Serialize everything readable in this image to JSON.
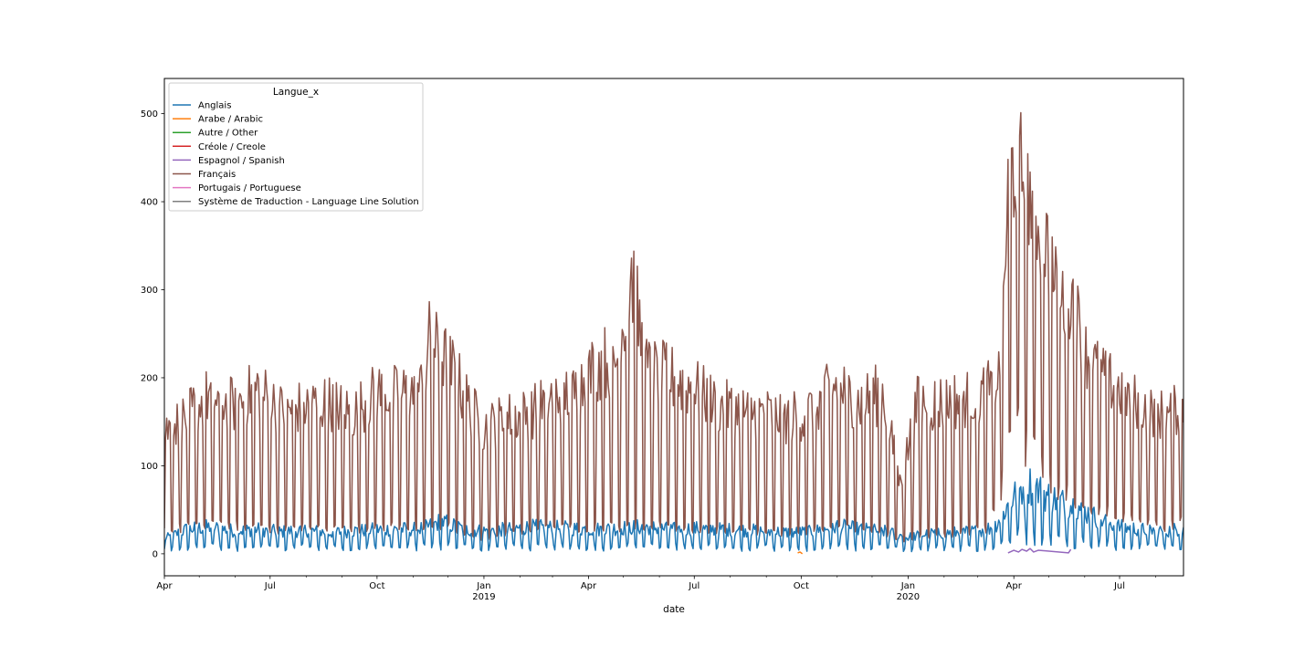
{
  "chart_data": {
    "type": "line",
    "title": "",
    "xlabel": "date",
    "ylabel": "",
    "ylim": [
      -25,
      540
    ],
    "xlim": [
      "2018-04-01",
      "2020-08-25"
    ],
    "grid": false,
    "legend": {
      "title": "Langue_x",
      "placement": "top-left"
    },
    "y_ticks": [
      0,
      100,
      200,
      300,
      400,
      500
    ],
    "x_ticks": [
      {
        "date": "2018-04-01",
        "label": "Apr",
        "year": ""
      },
      {
        "date": "2018-07-01",
        "label": "Jul",
        "year": ""
      },
      {
        "date": "2018-10-01",
        "label": "Oct",
        "year": ""
      },
      {
        "date": "2019-01-01",
        "label": "Jan",
        "year": "2019"
      },
      {
        "date": "2019-04-01",
        "label": "Apr",
        "year": ""
      },
      {
        "date": "2019-07-01",
        "label": "Jul",
        "year": ""
      },
      {
        "date": "2019-10-01",
        "label": "Oct",
        "year": ""
      },
      {
        "date": "2020-01-01",
        "label": "Jan",
        "year": "2020"
      },
      {
        "date": "2020-04-01",
        "label": "Apr",
        "year": ""
      },
      {
        "date": "2020-07-01",
        "label": "Jul",
        "year": ""
      }
    ],
    "x_minor_ticks": [
      "2018-05-01",
      "2018-06-01",
      "2018-08-01",
      "2018-09-01",
      "2018-11-01",
      "2018-12-01",
      "2019-02-01",
      "2019-03-01",
      "2019-05-01",
      "2019-06-01",
      "2019-08-01",
      "2019-09-01",
      "2019-11-01",
      "2019-12-01",
      "2020-02-01",
      "2020-03-01",
      "2020-05-01",
      "2020-06-01",
      "2020-08-01"
    ],
    "series": [
      {
        "name": "Anglais",
        "color": "#1f77b4",
        "x": [
          "2018-04-01",
          "2018-04-20",
          "2018-05-10",
          "2018-06-01",
          "2018-06-20",
          "2018-07-10",
          "2018-08-01",
          "2018-08-20",
          "2018-09-10",
          "2018-10-01",
          "2018-10-20",
          "2018-11-10",
          "2018-11-25",
          "2018-12-15",
          "2019-01-01",
          "2019-01-20",
          "2019-02-10",
          "2019-03-01",
          "2019-03-20",
          "2019-04-10",
          "2019-05-01",
          "2019-05-20",
          "2019-06-10",
          "2019-07-01",
          "2019-07-20",
          "2019-08-10",
          "2019-09-01",
          "2019-09-20",
          "2019-10-10",
          "2019-11-01",
          "2019-11-20",
          "2019-12-10",
          "2020-01-01",
          "2020-01-20",
          "2020-02-10",
          "2020-03-01",
          "2020-03-15",
          "2020-03-25",
          "2020-04-05",
          "2020-04-15",
          "2020-04-25",
          "2020-05-05",
          "2020-05-15",
          "2020-05-25",
          "2020-06-10",
          "2020-07-01",
          "2020-07-20",
          "2020-08-10",
          "2020-08-25"
        ],
        "values": [
          18,
          30,
          33,
          28,
          30,
          27,
          29,
          26,
          28,
          30,
          30,
          31,
          40,
          30,
          28,
          30,
          33,
          32,
          31,
          30,
          32,
          33,
          30,
          31,
          30,
          29,
          28,
          26,
          27,
          34,
          30,
          28,
          20,
          25,
          26,
          28,
          33,
          55,
          78,
          85,
          75,
          68,
          62,
          58,
          45,
          33,
          30,
          28,
          32
        ]
      },
      {
        "name": "Arabe / Arabic",
        "color": "#ff7f0e",
        "x": [
          "2019-09-28",
          "2019-09-30",
          "2019-10-02"
        ],
        "values": [
          1,
          2,
          0
        ]
      },
      {
        "name": "Autre / Other",
        "color": "#2ca02c",
        "x": [],
        "values": []
      },
      {
        "name": "Créole / Creole",
        "color": "#d62728",
        "x": [],
        "values": []
      },
      {
        "name": "Espagnol / Spanish",
        "color": "#9467bd",
        "x": [
          "2020-03-27",
          "2020-04-01",
          "2020-04-05",
          "2020-04-08",
          "2020-04-12",
          "2020-04-15",
          "2020-04-18",
          "2020-04-22",
          "2020-05-18",
          "2020-05-20"
        ],
        "values": [
          1,
          4,
          2,
          5,
          3,
          6,
          2,
          4,
          1,
          5
        ]
      },
      {
        "name": "Français",
        "color": "#8c564b",
        "x": [
          "2018-04-01",
          "2018-04-20",
          "2018-05-10",
          "2018-06-01",
          "2018-06-20",
          "2018-07-10",
          "2018-08-01",
          "2018-08-20",
          "2018-09-10",
          "2018-10-01",
          "2018-10-20",
          "2018-11-10",
          "2018-11-15",
          "2018-12-05",
          "2018-12-20",
          "2019-01-01",
          "2019-01-20",
          "2019-02-10",
          "2019-03-01",
          "2019-03-20",
          "2019-04-10",
          "2019-04-25",
          "2019-05-08",
          "2019-05-20",
          "2019-06-10",
          "2019-07-01",
          "2019-07-20",
          "2019-08-10",
          "2019-09-01",
          "2019-09-20",
          "2019-10-10",
          "2019-11-01",
          "2019-11-20",
          "2019-12-10",
          "2019-12-25",
          "2020-01-10",
          "2020-02-01",
          "2020-02-20",
          "2020-03-10",
          "2020-03-20",
          "2020-03-28",
          "2020-04-05",
          "2020-04-12",
          "2020-04-20",
          "2020-04-28",
          "2020-05-10",
          "2020-05-20",
          "2020-06-01",
          "2020-06-15",
          "2020-07-01",
          "2020-07-20",
          "2020-08-10",
          "2020-08-25"
        ],
        "peaks": [
          165,
          185,
          215,
          200,
          225,
          195,
          200,
          205,
          190,
          220,
          215,
          225,
          290,
          250,
          200,
          170,
          185,
          190,
          215,
          220,
          260,
          265,
          385,
          250,
          240,
          225,
          200,
          195,
          190,
          185,
          195,
          230,
          205,
          220,
          95,
          210,
          205,
          215,
          220,
          240,
          505,
          515,
          490,
          450,
          420,
          330,
          355,
          270,
          240,
          220,
          200,
          185,
          200
        ],
        "troughs": [
          30,
          30,
          32,
          32,
          31,
          28,
          30,
          29,
          28,
          32,
          30,
          33,
          33,
          30,
          22,
          18,
          25,
          28,
          28,
          30,
          32,
          30,
          35,
          33,
          30,
          28,
          28,
          25,
          25,
          22,
          25,
          30,
          28,
          25,
          15,
          20,
          22,
          25,
          30,
          62,
          130,
          140,
          120,
          110,
          95,
          70,
          65,
          55,
          50,
          40,
          35,
          30,
          40
        ]
      },
      {
        "name": "Portugais / Portuguese",
        "color": "#e377c2",
        "x": [],
        "values": []
      },
      {
        "name": "Système de Traduction - Language Line Solution",
        "color": "#7f7f7f",
        "x": [],
        "values": []
      }
    ]
  }
}
